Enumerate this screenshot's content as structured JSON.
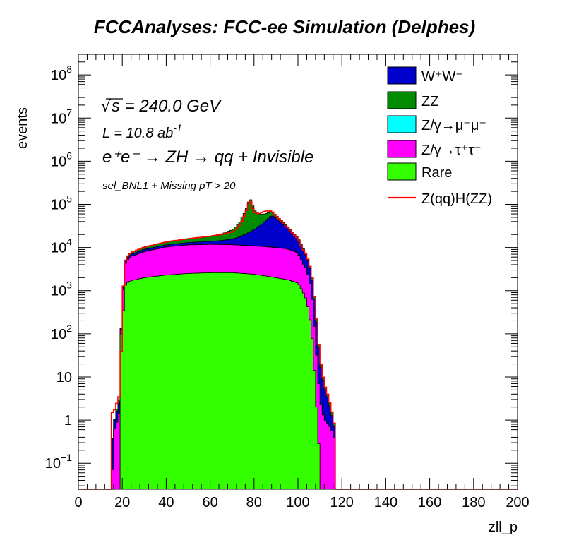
{
  "chart_data": {
    "type": "stacked-histogram",
    "title": "FCCAnalyses: FCC-ee Simulation (Delphes)",
    "xlabel": "zll_p",
    "ylabel": "events",
    "xlim": [
      0,
      200
    ],
    "ylim": [
      0.025,
      300000000
    ],
    "yscale": "log",
    "grid": false,
    "legend_position": "top-right",
    "x_ticks": [
      "0",
      "20",
      "40",
      "60",
      "80",
      "100",
      "120",
      "140",
      "160",
      "180",
      "200"
    ],
    "y_ticks": [
      {
        "value": 0.1,
        "base": "10",
        "exp": "−1"
      },
      {
        "value": 1,
        "base": "1",
        "exp": ""
      },
      {
        "value": 10,
        "base": "10",
        "exp": ""
      },
      {
        "value": 100,
        "base": "10",
        "exp": "2"
      },
      {
        "value": 1000,
        "base": "10",
        "exp": "3"
      },
      {
        "value": 10000,
        "base": "10",
        "exp": "4"
      },
      {
        "value": 100000,
        "base": "10",
        "exp": "5"
      },
      {
        "value": 1000000,
        "base": "10",
        "exp": "6"
      },
      {
        "value": 10000000,
        "base": "10",
        "exp": "7"
      },
      {
        "value": 100000000,
        "base": "10",
        "exp": "8"
      }
    ],
    "annotations": {
      "sqrt_symbol": "√",
      "energy": "s = 240.0 GeV",
      "lumi": "L = 10.8 ab",
      "lumi_exp": "-1",
      "process": "e⁺e⁻ → ZH → qq + Invisible",
      "selection": "sel_BNL1 + Missing pT > 20"
    },
    "legend": [
      {
        "label": "W⁺W⁻",
        "kind": "box",
        "color": "#0000cc"
      },
      {
        "label": "ZZ",
        "kind": "box",
        "color": "#008c00"
      },
      {
        "label": "Z/γ→μ⁺μ⁻",
        "kind": "box",
        "color": "#00ffff"
      },
      {
        "label": "Z/γ→τ⁺τ⁻",
        "kind": "box",
        "color": "#ff00ff"
      },
      {
        "label": "Rare",
        "kind": "box",
        "color": "#33ff00"
      },
      {
        "label": "Z(qq)H(ZZ)",
        "kind": "line",
        "color": "#ff0000"
      }
    ],
    "series_stack_order": [
      "Rare",
      "Z/γ→τ⁺τ⁻",
      "Z/γ→μ⁺μ⁻",
      "W⁺W⁻",
      "ZZ"
    ],
    "series": [
      {
        "name": "Rare",
        "color": "#33ff00",
        "points": [
          [
            15,
            0
          ],
          [
            16,
            0
          ],
          [
            17,
            0
          ],
          [
            18,
            0
          ],
          [
            19,
            0
          ],
          [
            20,
            100
          ],
          [
            21,
            1200
          ],
          [
            22,
            1500
          ],
          [
            24,
            1700
          ],
          [
            30,
            2000
          ],
          [
            40,
            2300
          ],
          [
            50,
            2500
          ],
          [
            60,
            2600
          ],
          [
            70,
            2600
          ],
          [
            80,
            2400
          ],
          [
            90,
            2000
          ],
          [
            95,
            1800
          ],
          [
            100,
            1500
          ],
          [
            102,
            1000
          ],
          [
            104,
            600
          ],
          [
            106,
            150
          ],
          [
            107,
            40
          ],
          [
            108,
            5
          ],
          [
            109,
            0.8
          ],
          [
            110,
            0.1
          ],
          [
            111,
            0
          ]
        ]
      },
      {
        "name": "Z/γ→τ⁺τ⁻",
        "color": "#ff00ff",
        "points": [
          [
            15,
            0.01
          ],
          [
            16,
            0.5
          ],
          [
            17,
            0.8
          ],
          [
            18,
            1
          ],
          [
            19,
            2
          ],
          [
            20,
            200
          ],
          [
            21,
            2500
          ],
          [
            22,
            3500
          ],
          [
            24,
            4500
          ],
          [
            30,
            6000
          ],
          [
            40,
            8000
          ],
          [
            50,
            9000
          ],
          [
            60,
            9200
          ],
          [
            70,
            9000
          ],
          [
            80,
            8500
          ],
          [
            90,
            8000
          ],
          [
            95,
            7500
          ],
          [
            100,
            6000
          ],
          [
            102,
            3500
          ],
          [
            104,
            2500
          ],
          [
            106,
            1000
          ],
          [
            107,
            300
          ],
          [
            108,
            60
          ],
          [
            109,
            15
          ],
          [
            110,
            3
          ],
          [
            112,
            1
          ],
          [
            114,
            0.8
          ],
          [
            116,
            0.5
          ],
          [
            117,
            0.3
          ],
          [
            118,
            0
          ]
        ]
      },
      {
        "name": "Z/γ→μ⁺μ⁻",
        "color": "#00ffff",
        "points": [
          [
            15,
            0
          ],
          [
            16,
            0
          ],
          [
            17,
            0
          ],
          [
            18,
            0
          ],
          [
            19,
            0
          ],
          [
            20,
            5
          ],
          [
            21,
            15
          ],
          [
            22,
            20
          ],
          [
            24,
            25
          ],
          [
            30,
            30
          ],
          [
            40,
            35
          ],
          [
            50,
            40
          ],
          [
            60,
            40
          ],
          [
            70,
            40
          ],
          [
            80,
            40
          ],
          [
            90,
            35
          ],
          [
            95,
            30
          ],
          [
            100,
            25
          ],
          [
            102,
            15
          ],
          [
            104,
            10
          ],
          [
            106,
            5
          ],
          [
            107,
            2
          ],
          [
            108,
            1
          ],
          [
            109,
            0.3
          ],
          [
            110,
            0.1
          ],
          [
            112,
            0
          ],
          [
            114,
            0
          ],
          [
            116,
            0
          ],
          [
            117,
            0
          ],
          [
            118,
            0
          ]
        ]
      },
      {
        "name": "W⁺W⁻",
        "color": "#0000cc",
        "points": [
          [
            15,
            0
          ],
          [
            16,
            0.3
          ],
          [
            17,
            0.5
          ],
          [
            18,
            1
          ],
          [
            19,
            1.5
          ],
          [
            20,
            50
          ],
          [
            21,
            400
          ],
          [
            22,
            600
          ],
          [
            24,
            800
          ],
          [
            30,
            1000
          ],
          [
            40,
            1200
          ],
          [
            50,
            1500
          ],
          [
            60,
            2000
          ],
          [
            70,
            4000
          ],
          [
            75,
            8000
          ],
          [
            80,
            15000
          ],
          [
            85,
            30000
          ],
          [
            88,
            45000
          ],
          [
            90,
            38000
          ],
          [
            95,
            20000
          ],
          [
            100,
            8000
          ],
          [
            102,
            5000
          ],
          [
            104,
            3000
          ],
          [
            106,
            1500
          ],
          [
            107,
            800
          ],
          [
            108,
            300
          ],
          [
            109,
            80
          ],
          [
            110,
            20
          ],
          [
            112,
            5
          ],
          [
            114,
            2
          ],
          [
            116,
            0.5
          ],
          [
            117,
            0.2
          ],
          [
            118,
            0
          ]
        ]
      },
      {
        "name": "ZZ",
        "color": "#008c00",
        "points": [
          [
            15,
            0
          ],
          [
            16,
            0
          ],
          [
            17,
            0
          ],
          [
            18,
            0.2
          ],
          [
            19,
            0.5
          ],
          [
            20,
            20
          ],
          [
            21,
            200
          ],
          [
            22,
            400
          ],
          [
            24,
            700
          ],
          [
            30,
            1200
          ],
          [
            40,
            2000
          ],
          [
            50,
            3000
          ],
          [
            60,
            4500
          ],
          [
            65,
            6000
          ],
          [
            70,
            10000
          ],
          [
            73,
            18000
          ],
          [
            75,
            35000
          ],
          [
            77,
            70000
          ],
          [
            78,
            120000
          ],
          [
            79,
            90000
          ],
          [
            80,
            50000
          ],
          [
            82,
            30000
          ],
          [
            85,
            20000
          ],
          [
            88,
            15000
          ],
          [
            90,
            8000
          ],
          [
            95,
            3000
          ],
          [
            100,
            1500
          ],
          [
            102,
            1000
          ],
          [
            104,
            600
          ],
          [
            106,
            300
          ],
          [
            107,
            150
          ],
          [
            108,
            60
          ],
          [
            109,
            20
          ],
          [
            110,
            5
          ],
          [
            112,
            1
          ],
          [
            114,
            0.5
          ],
          [
            116,
            0.2
          ],
          [
            117,
            0.1
          ],
          [
            118,
            0
          ]
        ]
      }
    ],
    "signal": {
      "name": "Z(qq)H(ZZ)",
      "color": "#ff0000",
      "points": [
        [
          0,
          0
        ],
        [
          15,
          0
        ],
        [
          16,
          1.5
        ],
        [
          17,
          2
        ],
        [
          18,
          3
        ],
        [
          19,
          4
        ],
        [
          20,
          380
        ],
        [
          21,
          4300
        ],
        [
          22,
          6000
        ],
        [
          24,
          7700
        ],
        [
          30,
          10200
        ],
        [
          40,
          13500
        ],
        [
          50,
          16000
        ],
        [
          60,
          18200
        ],
        [
          65,
          20000
        ],
        [
          70,
          23000
        ],
        [
          73,
          30000
        ],
        [
          75,
          45000
        ],
        [
          77,
          85000
        ],
        [
          78,
          135000
        ],
        [
          79,
          100000
        ],
        [
          80,
          65000
        ],
        [
          82,
          60000
        ],
        [
          85,
          70000
        ],
        [
          88,
          70000
        ],
        [
          90,
          55000
        ],
        [
          95,
          30000
        ],
        [
          100,
          16000
        ],
        [
          102,
          9500
        ],
        [
          104,
          6500
        ],
        [
          106,
          3000
        ],
        [
          107,
          1300
        ],
        [
          108,
          420
        ],
        [
          109,
          115
        ],
        [
          110,
          28
        ],
        [
          112,
          7
        ],
        [
          114,
          3.3
        ],
        [
          116,
          1.2
        ],
        [
          117,
          0.6
        ],
        [
          118,
          0
        ],
        [
          200,
          0
        ]
      ]
    }
  }
}
